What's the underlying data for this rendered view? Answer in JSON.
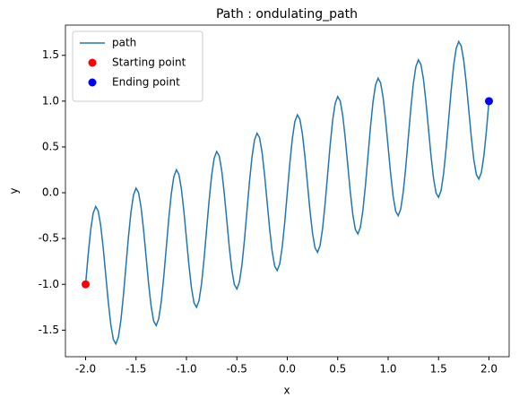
{
  "chart_data": {
    "type": "line",
    "title": "Path : ondulating_path",
    "xlabel": "x",
    "ylabel": "y",
    "xlim": [
      -2.2,
      2.2
    ],
    "ylim": [
      -1.79,
      1.83
    ],
    "xticks": [
      {
        "value": -2,
        "label": "-2.0"
      },
      -1.5,
      {
        "value": -1,
        "label": "-1.0"
      },
      -0.5,
      {
        "value": 0,
        "label": "0.0"
      },
      0.5,
      {
        "value": 1,
        "label": "1.0"
      },
      1.5,
      {
        "value": 2,
        "label": "2.0"
      }
    ],
    "yticks": [
      -1.5,
      {
        "value": -1,
        "label": "-1.0"
      },
      -0.5,
      {
        "value": 0,
        "label": "0.0"
      },
      0.5,
      {
        "value": 1,
        "label": "1.0"
      },
      1.5
    ],
    "legend": "upper left",
    "series": [
      {
        "name": "path",
        "kind": "line",
        "color": "#1f77b4",
        "x": [
          -2,
          -1.975,
          -1.95,
          -1.925,
          -1.9,
          -1.875,
          -1.85,
          -1.825,
          -1.8,
          -1.775,
          -1.75,
          -1.725,
          -1.7,
          -1.675,
          -1.65,
          -1.625,
          -1.6,
          -1.575,
          -1.55,
          -1.525,
          -1.5,
          -1.475,
          -1.45,
          -1.425,
          -1.4,
          -1.375,
          -1.35,
          -1.325,
          -1.3,
          -1.275,
          -1.25,
          -1.225,
          -1.2,
          -1.175,
          -1.15,
          -1.125,
          -1.1,
          -1.075,
          -1.05,
          -1.025,
          -1,
          -0.975,
          -0.95,
          -0.925,
          -0.9,
          -0.875,
          -0.85,
          -0.825,
          -0.8,
          -0.775,
          -0.75,
          -0.725,
          -0.7,
          -0.675,
          -0.65,
          -0.625,
          -0.6,
          -0.575,
          -0.55,
          -0.525,
          -0.5,
          -0.475,
          -0.45,
          -0.425,
          -0.4,
          -0.375,
          -0.35,
          -0.325,
          -0.3,
          -0.275,
          -0.25,
          -0.225,
          -0.2,
          -0.175,
          -0.15,
          -0.125,
          -0.1,
          -0.075,
          -0.05,
          -0.025,
          0,
          0.025,
          0.05,
          0.075,
          0.1,
          0.125,
          0.15,
          0.175,
          0.2,
          0.225,
          0.25,
          0.275,
          0.3,
          0.325,
          0.35,
          0.375,
          0.4,
          0.425,
          0.45,
          0.475,
          0.5,
          0.525,
          0.55,
          0.575,
          0.6,
          0.625,
          0.65,
          0.675,
          0.7,
          0.725,
          0.75,
          0.775,
          0.8,
          0.825,
          0.85,
          0.875,
          0.9,
          0.925,
          0.95,
          0.975,
          1,
          1.025,
          1.05,
          1.075,
          1.1,
          1.125,
          1.15,
          1.175,
          1.2,
          1.225,
          1.25,
          1.275,
          1.3,
          1.325,
          1.35,
          1.375,
          1.4,
          1.425,
          1.45,
          1.475,
          1.5,
          1.525,
          1.55,
          1.575,
          1.6,
          1.625,
          1.65,
          1.675,
          1.7,
          1.725,
          1.75,
          1.775,
          1.8,
          1.825,
          1.85,
          1.875,
          1.9,
          1.925,
          1.95,
          1.975,
          2
        ],
        "values": [
          -1,
          -0.682,
          -0.409,
          -0.224,
          -0.15,
          -0.199,
          -0.359,
          -0.607,
          -0.9,
          -1.194,
          -1.441,
          -1.602,
          -1.65,
          -1.577,
          -1.391,
          -1.119,
          -0.8,
          -0.482,
          -0.209,
          -0.024,
          0.05,
          0.001,
          -0.159,
          -0.407,
          -0.7,
          -0.994,
          -1.241,
          -1.402,
          -1.45,
          -1.377,
          -1.191,
          -0.919,
          -0.6,
          -0.282,
          -0.009,
          0.176,
          0.25,
          0.201,
          0.041,
          -0.207,
          -0.5,
          -0.794,
          -1.041,
          -1.202,
          -1.25,
          -1.177,
          -0.991,
          -0.719,
          -0.4,
          -0.082,
          0.191,
          0.376,
          0.45,
          0.401,
          0.241,
          -0.007,
          -0.3,
          -0.594,
          -0.841,
          -1.002,
          -1.05,
          -0.977,
          -0.791,
          -0.519,
          -0.2,
          0.118,
          0.391,
          0.576,
          0.65,
          0.601,
          0.441,
          0.193,
          -0.1,
          -0.394,
          -0.641,
          -0.802,
          -0.85,
          -0.777,
          -0.591,
          -0.319,
          0,
          0.318,
          0.591,
          0.776,
          0.85,
          0.801,
          0.641,
          0.393,
          0.1,
          -0.194,
          -0.441,
          -0.602,
          -0.65,
          -0.577,
          -0.391,
          -0.119,
          0.2,
          0.518,
          0.791,
          0.976,
          1.05,
          1.001,
          0.841,
          0.593,
          0.3,
          0.006,
          -0.241,
          -0.402,
          -0.45,
          -0.377,
          -0.191,
          0.081,
          0.4,
          0.718,
          0.991,
          1.176,
          1.25,
          1.201,
          1.041,
          0.793,
          0.5,
          0.206,
          -0.041,
          -0.202,
          -0.25,
          -0.177,
          0.009,
          0.281,
          0.6,
          0.918,
          1.191,
          1.376,
          1.45,
          1.401,
          1.241,
          0.993,
          0.7,
          0.406,
          0.159,
          -0.002,
          -0.05,
          0.023,
          0.209,
          0.481,
          0.8,
          1.118,
          1.391,
          1.576,
          1.65,
          1.601,
          1.441,
          1.193,
          0.9,
          0.606,
          0.359,
          0.198,
          0.15,
          0.223,
          0.409,
          0.681,
          1
        ]
      },
      {
        "name": "Starting point",
        "kind": "scatter",
        "color": "#ff0000",
        "x": [
          -2
        ],
        "values": [
          -1
        ]
      },
      {
        "name": "Ending point",
        "kind": "scatter",
        "color": "#0000ff",
        "x": [
          2
        ],
        "values": [
          1
        ]
      }
    ]
  }
}
